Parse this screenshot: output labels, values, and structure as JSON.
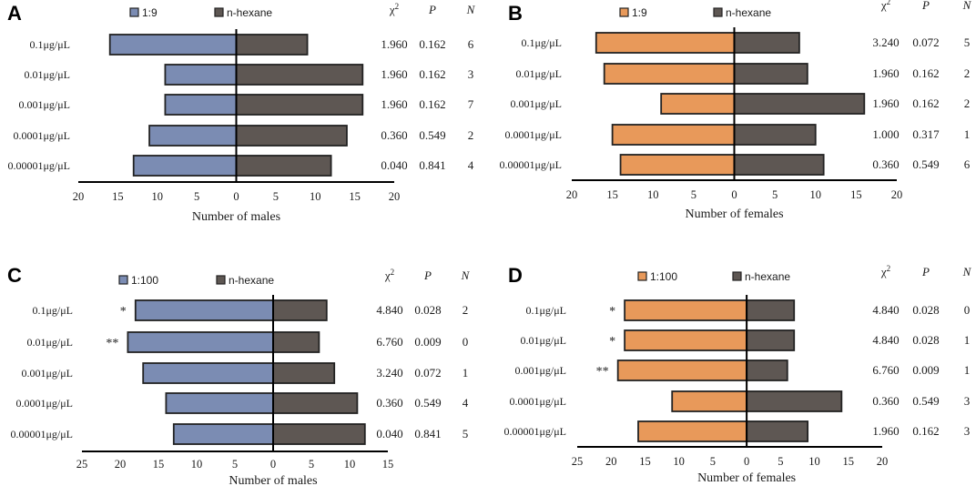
{
  "figure": {
    "colors": {
      "blue": "#7b8cb3",
      "orange": "#e8995a",
      "gray": "#5e5753",
      "outline": "#222222",
      "axis": "#000000"
    },
    "headers": {
      "chi": "χ",
      "chi_sup": "2",
      "p": "P",
      "n": "N"
    }
  },
  "chart_data": [
    {
      "panel": "A",
      "type": "bar",
      "orientation": "horizontal-diverging",
      "legend": [
        "1:9",
        "n-hexane"
      ],
      "left_color": "#7b8cb3",
      "categories": [
        "0.1μg/μL",
        "0.01μg/μL",
        "0.001μg/μL",
        "0.0001μg/μL",
        "0.00001μg/μL"
      ],
      "series": [
        {
          "name": "1:9",
          "side": "left",
          "values": [
            16,
            9,
            9,
            11,
            13
          ]
        },
        {
          "name": "n-hexane",
          "side": "right",
          "values": [
            9,
            16,
            16,
            14,
            12
          ]
        }
      ],
      "chi2": [
        "1.960",
        "1.960",
        "1.960",
        "0.360",
        "0.040"
      ],
      "p": [
        "0.162",
        "0.162",
        "0.162",
        "0.549",
        "0.841"
      ],
      "n": [
        "6",
        "3",
        "7",
        "2",
        "4"
      ],
      "sig": [
        "",
        "",
        "",
        "",
        ""
      ],
      "xlim": [
        -20,
        20
      ],
      "ticks": [
        -20,
        -15,
        -10,
        -5,
        0,
        5,
        10,
        15,
        20
      ],
      "tick_labels": [
        "20",
        "15",
        "10",
        "5",
        "0",
        "5",
        "10",
        "15",
        "20"
      ],
      "xlabel": "Number of males"
    },
    {
      "panel": "B",
      "type": "bar",
      "orientation": "horizontal-diverging",
      "legend": [
        "1:9",
        "n-hexane"
      ],
      "left_color": "#e8995a",
      "categories": [
        "0.1μg/μL",
        "0.01μg/μL",
        "0.001μg/μL",
        "0.0001μg/μL",
        "0.00001μg/μL"
      ],
      "series": [
        {
          "name": "1:9",
          "side": "left",
          "values": [
            17,
            16,
            9,
            15,
            14
          ]
        },
        {
          "name": "n-hexane",
          "side": "right",
          "values": [
            8,
            9,
            16,
            10,
            11
          ]
        }
      ],
      "chi2": [
        "3.240",
        "1.960",
        "1.960",
        "1.000",
        "0.360"
      ],
      "p": [
        "0.072",
        "0.162",
        "0.162",
        "0.317",
        "0.549"
      ],
      "n": [
        "5",
        "2",
        "2",
        "1",
        "6"
      ],
      "sig": [
        "",
        "",
        "",
        "",
        ""
      ],
      "xlim": [
        -20,
        20
      ],
      "ticks": [
        -20,
        -15,
        -10,
        -5,
        0,
        5,
        10,
        15,
        20
      ],
      "tick_labels": [
        "20",
        "15",
        "10",
        "5",
        "0",
        "5",
        "10",
        "15",
        "20"
      ],
      "xlabel": "Number of females"
    },
    {
      "panel": "C",
      "type": "bar",
      "orientation": "horizontal-diverging",
      "legend": [
        "1:100",
        "n-hexane"
      ],
      "left_color": "#7b8cb3",
      "categories": [
        "0.1μg/μL",
        "0.01μg/μL",
        "0.001μg/μL",
        "0.0001μg/μL",
        "0.00001μg/μL"
      ],
      "series": [
        {
          "name": "1:100",
          "side": "left",
          "values": [
            18,
            19,
            17,
            14,
            13
          ]
        },
        {
          "name": "n-hexane",
          "side": "right",
          "values": [
            7,
            6,
            8,
            11,
            12
          ]
        }
      ],
      "chi2": [
        "4.840",
        "6.760",
        "3.240",
        "0.360",
        "0.040"
      ],
      "p": [
        "0.028",
        "0.009",
        "0.072",
        "0.549",
        "0.841"
      ],
      "n": [
        "2",
        "0",
        "1",
        "4",
        "5"
      ],
      "sig": [
        "*",
        "**",
        "",
        "",
        ""
      ],
      "xlim": [
        -25,
        15
      ],
      "ticks": [
        -25,
        -20,
        -15,
        -10,
        -5,
        0,
        5,
        10,
        15
      ],
      "tick_labels": [
        "25",
        "20",
        "15",
        "10",
        "5",
        "0",
        "5",
        "10",
        "15"
      ],
      "xlabel": "Number of males"
    },
    {
      "panel": "D",
      "type": "bar",
      "orientation": "horizontal-diverging",
      "legend": [
        "1:100",
        "n-hexane"
      ],
      "left_color": "#e8995a",
      "categories": [
        "0.1μg/μL",
        "0.01μg/μL",
        "0.001μg/μL",
        "0.0001μg/μL",
        "0.00001μg/μL"
      ],
      "series": [
        {
          "name": "1:100",
          "side": "left",
          "values": [
            18,
            18,
            19,
            11,
            16
          ]
        },
        {
          "name": "n-hexane",
          "side": "right",
          "values": [
            7,
            7,
            6,
            14,
            9
          ]
        }
      ],
      "chi2": [
        "4.840",
        "4.840",
        "6.760",
        "0.360",
        "1.960"
      ],
      "p": [
        "0.028",
        "0.028",
        "0.009",
        "0.549",
        "0.162"
      ],
      "n": [
        "0",
        "1",
        "1",
        "3",
        "3"
      ],
      "sig": [
        "*",
        "*",
        "**",
        "",
        ""
      ],
      "xlim": [
        -25,
        20
      ],
      "ticks": [
        -25,
        -20,
        -15,
        -10,
        -5,
        0,
        5,
        10,
        15,
        20
      ],
      "tick_labels": [
        "25",
        "20",
        "15",
        "10",
        "5",
        "0",
        "5",
        "10",
        "15",
        "20"
      ],
      "xlabel": "Number of females"
    }
  ]
}
